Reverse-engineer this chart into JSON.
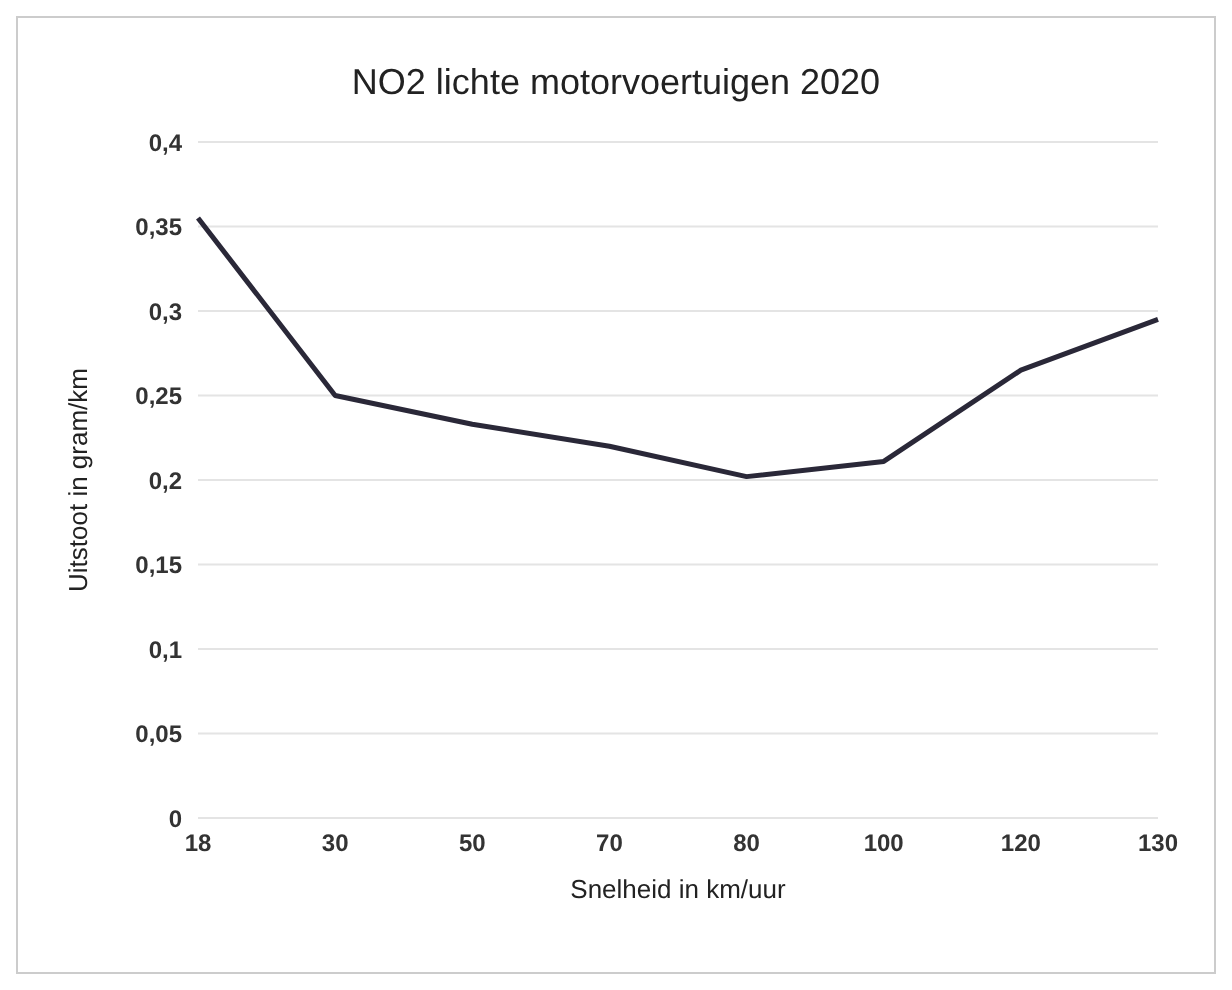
{
  "chart_data": {
    "type": "line",
    "title": "NO2 lichte motorvoertuigen 2020",
    "xlabel": "Snelheid in km/uur",
    "ylabel": "Uitstoot in gram/km",
    "categories": [
      "18",
      "30",
      "50",
      "70",
      "80",
      "100",
      "120",
      "130"
    ],
    "series": [
      {
        "color": "#2a2838",
        "values": [
          0.355,
          0.25,
          0.233,
          0.22,
          0.202,
          0.211,
          0.265,
          0.295
        ]
      }
    ],
    "ylim": [
      0,
      0.4
    ],
    "yticks": [
      {
        "value": 0,
        "label": "0"
      },
      {
        "value": 0.05,
        "label": "0,05"
      },
      {
        "value": 0.1,
        "label": "0,1"
      },
      {
        "value": 0.15,
        "label": "0,15"
      },
      {
        "value": 0.2,
        "label": "0,2"
      },
      {
        "value": 0.25,
        "label": "0,25"
      },
      {
        "value": 0.3,
        "label": "0,3"
      },
      {
        "value": 0.35,
        "label": "0,35"
      },
      {
        "value": 0.4,
        "label": "0,4"
      }
    ],
    "grid": "y",
    "marker": "none",
    "line_style": "solid"
  }
}
